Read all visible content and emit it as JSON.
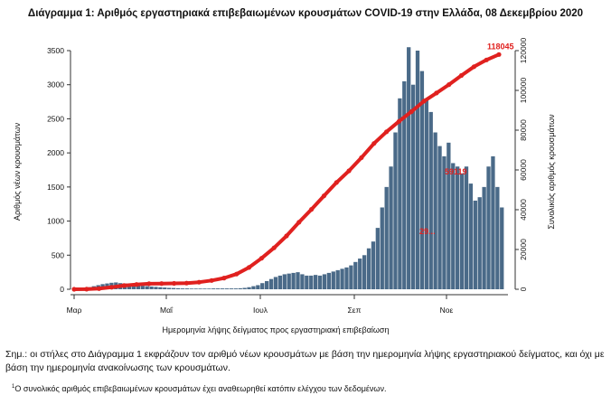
{
  "chart_data": {
    "type": "bar",
    "title": "Διάγραμμα 1: Αριθμός εργαστηριακά επιβεβαιωμένων κρουσμάτων COVID-19 στην Ελλάδα, 08 Δεκεμβρίου 2020",
    "xlabel": "Ημερομηνία λήψης δείγματος προς εργαστηριακή επιβεβαίωση",
    "ylabel": "Αριθμός νέων κρουσμάτων",
    "y2label": "Συνολικός αριθμός κρουσμάτων",
    "ylim": [
      0,
      3500
    ],
    "yticks": [
      0,
      500,
      1000,
      1500,
      2000,
      2500,
      3000,
      3500
    ],
    "y2lim": [
      0,
      120000
    ],
    "y2ticks": [
      0,
      20000,
      40000,
      60000,
      80000,
      100000,
      120000
    ],
    "xticks": [
      "Μαρ",
      "Μαΐ",
      "Ιουλ",
      "Σεπ",
      "Νοε"
    ],
    "series": [
      {
        "kind": "bar",
        "color": "#4a6a88",
        "values": [
          5,
          12,
          20,
          30,
          45,
          60,
          75,
          85,
          95,
          100,
          90,
          85,
          80,
          70,
          60,
          50,
          45,
          40,
          35,
          30,
          25,
          20,
          18,
          15,
          12,
          12,
          10,
          10,
          10,
          10,
          10,
          12,
          12,
          12,
          12,
          12,
          12,
          15,
          20,
          30,
          45,
          60,
          90,
          120,
          150,
          180,
          200,
          220,
          230,
          240,
          250,
          220,
          200,
          200,
          210,
          200,
          220,
          240,
          260,
          280,
          300,
          320,
          350,
          400,
          450,
          500,
          600,
          700,
          900,
          1200,
          1500,
          1800,
          2300,
          2800,
          3050,
          3550,
          3000,
          3500,
          3200,
          2800,
          2600,
          2300,
          2100,
          1950,
          2150,
          1850,
          1800,
          1700,
          1800,
          1550,
          1300,
          1350,
          1500,
          1800,
          1950,
          1500,
          1200
        ]
      },
      {
        "kind": "line",
        "color": "#e0211f",
        "values": [
          5,
          60,
          330,
          1020,
          1870,
          2420,
          2760,
          2880,
          2940,
          3090,
          3530,
          4400,
          5640,
          7620,
          10960,
          15600,
          20840,
          26800,
          33700,
          40200,
          47000,
          53700,
          59550,
          66200,
          73300,
          79200,
          84400,
          89300,
          94600,
          98700,
          102900,
          107500,
          111900,
          115300,
          118045
        ]
      }
    ],
    "data_labels": [
      "118045",
      "59119",
      "29..."
    ]
  },
  "note": "Σημ.: οι στήλες στο Διάγραμμα 1 εκφράζουν τον αριθμό νέων κρουσμάτων με βάση την ημερομηνία λήψης εργαστηριακού δείγματος, και όχι με βάση την ημερομηνία ανακοίνωσης των κρουσμάτων.",
  "footnote_marker": "1",
  "footnote": "Ο συνολικός αριθμός επιβεβαιωμένων κρουσμάτων έχει αναθεωρηθεί κατόπιν ελέγχου των δεδομένων."
}
